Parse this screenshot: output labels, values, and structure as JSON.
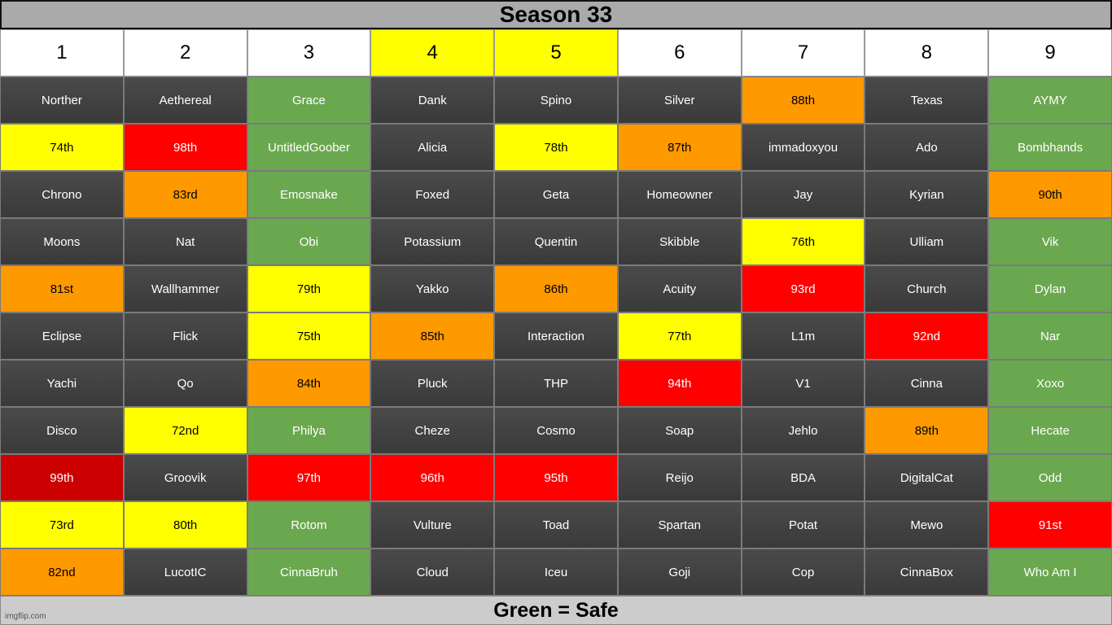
{
  "title": "Season 33",
  "footer": "Green = Safe",
  "watermark": "imgflip.com",
  "colors": {
    "dark": "#404040",
    "green": "#6aa84f",
    "yellow": "#ffff00",
    "orange": "#ff9900",
    "red": "#ff0000",
    "darkred": "#cc0000"
  },
  "columns": [
    {
      "label": "1",
      "highlight": false
    },
    {
      "label": "2",
      "highlight": false
    },
    {
      "label": "3",
      "highlight": false
    },
    {
      "label": "4",
      "highlight": true
    },
    {
      "label": "5",
      "highlight": true
    },
    {
      "label": "6",
      "highlight": false
    },
    {
      "label": "7",
      "highlight": false
    },
    {
      "label": "8",
      "highlight": false
    },
    {
      "label": "9",
      "highlight": false
    }
  ],
  "rows": [
    [
      {
        "text": "Norther",
        "color": "dark"
      },
      {
        "text": "Aethereal",
        "color": "dark"
      },
      {
        "text": "Grace",
        "color": "green"
      },
      {
        "text": "Dank",
        "color": "dark"
      },
      {
        "text": "Spino",
        "color": "dark"
      },
      {
        "text": "Silver",
        "color": "dark"
      },
      {
        "text": "88th",
        "color": "orange"
      },
      {
        "text": "Texas",
        "color": "dark"
      },
      {
        "text": "AYMY",
        "color": "green"
      }
    ],
    [
      {
        "text": "74th",
        "color": "yellow"
      },
      {
        "text": "98th",
        "color": "red"
      },
      {
        "text": "UntitledGoober",
        "color": "green"
      },
      {
        "text": "Alicia",
        "color": "dark"
      },
      {
        "text": "78th",
        "color": "yellow"
      },
      {
        "text": "87th",
        "color": "orange"
      },
      {
        "text": "immadoxyou",
        "color": "dark"
      },
      {
        "text": "Ado",
        "color": "dark"
      },
      {
        "text": "Bombhands",
        "color": "green"
      }
    ],
    [
      {
        "text": "Chrono",
        "color": "dark"
      },
      {
        "text": "83rd",
        "color": "orange"
      },
      {
        "text": "Emosnake",
        "color": "green"
      },
      {
        "text": "Foxed",
        "color": "dark"
      },
      {
        "text": "Geta",
        "color": "dark"
      },
      {
        "text": "Homeowner",
        "color": "dark"
      },
      {
        "text": "Jay",
        "color": "dark"
      },
      {
        "text": "Kyrian",
        "color": "dark"
      },
      {
        "text": "90th",
        "color": "orange"
      }
    ],
    [
      {
        "text": "Moons",
        "color": "dark"
      },
      {
        "text": "Nat",
        "color": "dark"
      },
      {
        "text": "Obi",
        "color": "green"
      },
      {
        "text": "Potassium",
        "color": "dark"
      },
      {
        "text": "Quentin",
        "color": "dark"
      },
      {
        "text": "Skibble",
        "color": "dark"
      },
      {
        "text": "76th",
        "color": "yellow"
      },
      {
        "text": "Ulliam",
        "color": "dark"
      },
      {
        "text": "Vik",
        "color": "green"
      }
    ],
    [
      {
        "text": "81st",
        "color": "orange"
      },
      {
        "text": "Wallhammer",
        "color": "dark"
      },
      {
        "text": "79th",
        "color": "yellow"
      },
      {
        "text": "Yakko",
        "color": "dark"
      },
      {
        "text": "86th",
        "color": "orange"
      },
      {
        "text": "Acuity",
        "color": "dark"
      },
      {
        "text": "93rd",
        "color": "red"
      },
      {
        "text": "Church",
        "color": "dark"
      },
      {
        "text": "Dylan",
        "color": "green"
      }
    ],
    [
      {
        "text": "Eclipse",
        "color": "dark"
      },
      {
        "text": "Flick",
        "color": "dark"
      },
      {
        "text": "75th",
        "color": "yellow"
      },
      {
        "text": "85th",
        "color": "orange"
      },
      {
        "text": "Interaction",
        "color": "dark"
      },
      {
        "text": "77th",
        "color": "yellow"
      },
      {
        "text": "L1m",
        "color": "dark"
      },
      {
        "text": "92nd",
        "color": "red"
      },
      {
        "text": "Nar",
        "color": "green"
      }
    ],
    [
      {
        "text": "Yachi",
        "color": "dark"
      },
      {
        "text": "Qo",
        "color": "dark"
      },
      {
        "text": "84th",
        "color": "orange"
      },
      {
        "text": "Pluck",
        "color": "dark"
      },
      {
        "text": "THP",
        "color": "dark"
      },
      {
        "text": "94th",
        "color": "red"
      },
      {
        "text": "V1",
        "color": "dark"
      },
      {
        "text": "Cinna",
        "color": "dark"
      },
      {
        "text": "Xoxo",
        "color": "green"
      }
    ],
    [
      {
        "text": "Disco",
        "color": "dark"
      },
      {
        "text": "72nd",
        "color": "yellow"
      },
      {
        "text": "Philya",
        "color": "green"
      },
      {
        "text": "Cheze",
        "color": "dark"
      },
      {
        "text": "Cosmo",
        "color": "dark"
      },
      {
        "text": "Soap",
        "color": "dark"
      },
      {
        "text": "Jehlo",
        "color": "dark"
      },
      {
        "text": "89th",
        "color": "orange"
      },
      {
        "text": "Hecate",
        "color": "green"
      }
    ],
    [
      {
        "text": "99th",
        "color": "darkred"
      },
      {
        "text": "Groovik",
        "color": "dark"
      },
      {
        "text": "97th",
        "color": "red"
      },
      {
        "text": "96th",
        "color": "red"
      },
      {
        "text": "95th",
        "color": "red"
      },
      {
        "text": "Reijo",
        "color": "dark"
      },
      {
        "text": "BDA",
        "color": "dark"
      },
      {
        "text": "DigitalCat",
        "color": "dark"
      },
      {
        "text": "Odd",
        "color": "green"
      }
    ],
    [
      {
        "text": "73rd",
        "color": "yellow"
      },
      {
        "text": "80th",
        "color": "yellow"
      },
      {
        "text": "Rotom",
        "color": "green"
      },
      {
        "text": "Vulture",
        "color": "dark"
      },
      {
        "text": "Toad",
        "color": "dark"
      },
      {
        "text": "Spartan",
        "color": "dark"
      },
      {
        "text": "Potat",
        "color": "dark"
      },
      {
        "text": "Mewo",
        "color": "dark"
      },
      {
        "text": "91st",
        "color": "red"
      }
    ],
    [
      {
        "text": "82nd",
        "color": "orange"
      },
      {
        "text": "LucotIC",
        "color": "dark"
      },
      {
        "text": "CinnaBruh",
        "color": "green"
      },
      {
        "text": "Cloud",
        "color": "dark"
      },
      {
        "text": "Iceu",
        "color": "dark"
      },
      {
        "text": "Goji",
        "color": "dark"
      },
      {
        "text": "Cop",
        "color": "dark"
      },
      {
        "text": "CinnaBox",
        "color": "dark"
      },
      {
        "text": "Who Am I",
        "color": "green"
      }
    ]
  ]
}
